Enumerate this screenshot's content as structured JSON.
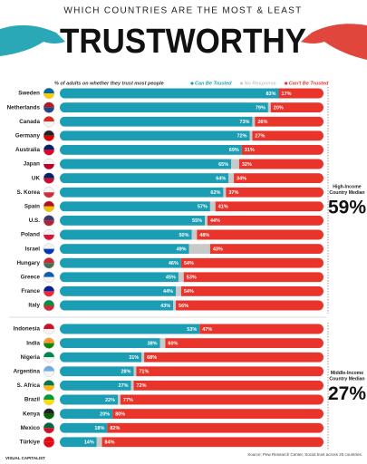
{
  "header": {
    "title_line1": "WHICH COUNTRIES ARE THE MOST & LEAST",
    "title_line2": "TRUSTWORTHY"
  },
  "chart_data": {
    "type": "bar",
    "orientation": "horizontal",
    "stacked": true,
    "subtitle": "% of adults on whether they trust most people",
    "xlim": [
      0,
      100
    ],
    "series": [
      {
        "name": "Can Be Trusted",
        "color": "#1b9db3"
      },
      {
        "name": "No Response",
        "color": "#c9c9c9"
      },
      {
        "name": "Can't Be Trusted",
        "color": "#e8342b"
      }
    ],
    "groups": [
      {
        "annotation": [
          "High-Income",
          "Country Median"
        ],
        "median": 59,
        "median_label": "59%",
        "categories": [
          "Sweden",
          "Netherlands",
          "Canada",
          "Germany",
          "Australia",
          "Japan",
          "UK",
          "S. Korea",
          "Spain",
          "U.S.",
          "Poland",
          "Israel",
          "Hungary",
          "Greece",
          "France",
          "Italy"
        ],
        "series": [
          {
            "values": [
              83,
              79,
              73,
              72,
              69,
              65,
              64,
              62,
              57,
              55,
              50,
              49,
              46,
              45,
              44,
              43
            ],
            "value_labels": [
              "83%",
              "79%",
              "73%",
              "72%",
              "69%",
              "65%",
              "64%",
              "62%",
              "57%",
              "55%",
              "50%",
              "49%",
              "46%",
              "45%",
              "44%",
              "43%"
            ]
          },
          {
            "values": [
              0,
              1,
              1,
              1,
              0,
              3,
              2,
              1,
              2,
              1,
              2,
              8,
              0,
              2,
              2,
              1
            ]
          },
          {
            "values": [
              17,
              20,
              26,
              27,
              31,
              32,
              34,
              37,
              41,
              44,
              48,
              43,
              54,
              53,
              54,
              56
            ],
            "value_labels": [
              "17%",
              "20%",
              "26%",
              "27%",
              "31%",
              "32%",
              "34%",
              "37%",
              "41%",
              "44%",
              "48%",
              "43%",
              "54%",
              "53%",
              "54%",
              "56%"
            ]
          }
        ]
      },
      {
        "annotation": [
          "Middle-Income",
          "Country Median"
        ],
        "median": 27,
        "median_label": "27%",
        "categories": [
          "Indonesia",
          "India",
          "Nigeria",
          "Argentina",
          "S. Africa",
          "Brazil",
          "Kenya",
          "Mexico",
          "Türkiye"
        ],
        "series": [
          {
            "values": [
              53,
              38,
              31,
              28,
              27,
              22,
              20,
              18,
              14
            ],
            "value_labels": [
              "53%",
              "38%",
              "31%",
              "28%",
              "27%",
              "22%",
              "20%",
              "18%",
              "14%"
            ]
          },
          {
            "values": [
              0,
              2,
              1,
              1,
              1,
              1,
              0,
              0,
              2
            ]
          },
          {
            "values": [
              47,
              60,
              68,
              71,
              72,
              77,
              80,
              82,
              84
            ],
            "value_labels": [
              "47%",
              "60%",
              "68%",
              "71%",
              "72%",
              "77%",
              "80%",
              "82%",
              "84%"
            ]
          }
        ]
      }
    ]
  },
  "footer": {
    "source": "Source: Pew Research Center, Social trust across 25 countries.",
    "brand": "VISUAL CAPITALIST"
  }
}
